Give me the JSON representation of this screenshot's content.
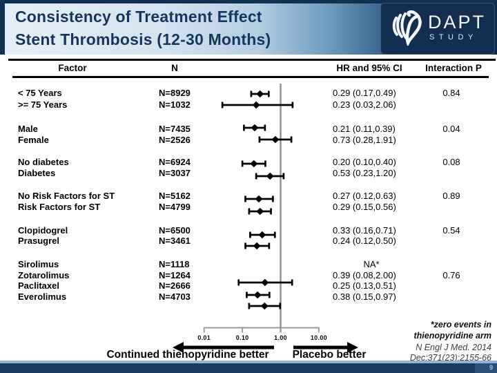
{
  "header": {
    "title_line1": "Consistency of Treatment Effect",
    "title_line2": "Stent Thrombosis (12-30 Months)",
    "logo": {
      "name": "DAPT",
      "sub": "STUDY"
    }
  },
  "table": {
    "columns": [
      "Factor",
      "N",
      "HR and 95% CI",
      "Interaction P"
    ]
  },
  "chart_data": {
    "type": "forest",
    "x_scale": "log",
    "x_ticks": [
      "0.01",
      "0.10",
      "1.00",
      "10.00"
    ],
    "reference_line": 1.0,
    "xlim": [
      0.01,
      10.0
    ],
    "groups": [
      {
        "interaction_p": "0.84",
        "rows": [
          {
            "factor": "< 75 Years",
            "n": "N=8929",
            "hr": 0.29,
            "lo": 0.17,
            "hi": 0.49,
            "hr_text": "0.29 (0.17,0.49)"
          },
          {
            "factor": ">= 75 Years",
            "n": "N=1032",
            "hr": 0.23,
            "lo": 0.03,
            "hi": 2.06,
            "hr_text": "0.23 (0.03,2.06)"
          }
        ]
      },
      {
        "interaction_p": "0.04",
        "rows": [
          {
            "factor": "Male",
            "n": "N=7435",
            "hr": 0.21,
            "lo": 0.11,
            "hi": 0.39,
            "hr_text": "0.21 (0.11,0.39)"
          },
          {
            "factor": "Female",
            "n": "N=2526",
            "hr": 0.73,
            "lo": 0.28,
            "hi": 1.91,
            "hr_text": "0.73 (0.28,1.91)"
          }
        ]
      },
      {
        "interaction_p": "0.08",
        "rows": [
          {
            "factor": "No diabetes",
            "n": "N=6924",
            "hr": 0.2,
            "lo": 0.1,
            "hi": 0.4,
            "hr_text": "0.20 (0.10,0.40)"
          },
          {
            "factor": "Diabetes",
            "n": "N=3037",
            "hr": 0.53,
            "lo": 0.23,
            "hi": 1.2,
            "hr_text": "0.53 (0.23,1.20)"
          }
        ]
      },
      {
        "interaction_p": "0.89",
        "rows": [
          {
            "factor": "No Risk Factors for ST",
            "n": "N=5162",
            "hr": 0.27,
            "lo": 0.12,
            "hi": 0.63,
            "hr_text": "0.27 (0.12,0.63)"
          },
          {
            "factor": "Risk Factors for ST",
            "n": "N=4799",
            "hr": 0.29,
            "lo": 0.15,
            "hi": 0.56,
            "hr_text": "0.29 (0.15,0.56)"
          }
        ]
      },
      {
        "interaction_p": "0.54",
        "rows": [
          {
            "factor": "Clopidogrel",
            "n": "N=6500",
            "hr": 0.33,
            "lo": 0.16,
            "hi": 0.71,
            "hr_text": "0.33 (0.16,0.71)"
          },
          {
            "factor": "Prasugrel",
            "n": "N=3461",
            "hr": 0.24,
            "lo": 0.12,
            "hi": 0.5,
            "hr_text": "0.24 (0.12,0.50)"
          }
        ]
      },
      {
        "interaction_p": "0.76",
        "rows": [
          {
            "factor": "Sirolimus",
            "n": "N=1118",
            "hr": null,
            "lo": null,
            "hi": null,
            "hr_text": "NA*",
            "na": true
          },
          {
            "factor": "Zotarolimus",
            "n": "N=1264",
            "hr": 0.39,
            "lo": 0.08,
            "hi": 2.0,
            "hr_text": "0.39 (0.08,2.00)"
          },
          {
            "factor": "Paclitaxel",
            "n": "N=2666",
            "hr": 0.25,
            "lo": 0.13,
            "hi": 0.51,
            "hr_text": "0.25 (0.13,0.51)"
          },
          {
            "factor": "Everolimus",
            "n": "N=4703",
            "hr": 0.38,
            "lo": 0.15,
            "hi": 0.97,
            "hr_text": "0.38 (0.15,0.97)"
          }
        ]
      }
    ],
    "axis_labels": {
      "left_arrow": "Continued thienopyridine better",
      "right_arrow": "Placebo better"
    }
  },
  "footnote": {
    "line1": "*zero events in",
    "line2": "thienopyridine arm",
    "citation1": "N Engl J Med. 2014",
    "citation2": "Dec;371(23):2155-66"
  },
  "footer": {
    "page": "9"
  },
  "colors": {
    "title": "#17365d",
    "banner_dark": "#0d2a47",
    "footer_bar": "#1d3b60",
    "footer_line": "#8db4d6",
    "reference_line": "#8c8c8c",
    "axis": "#9a9a9a",
    "marker": "#000000"
  }
}
